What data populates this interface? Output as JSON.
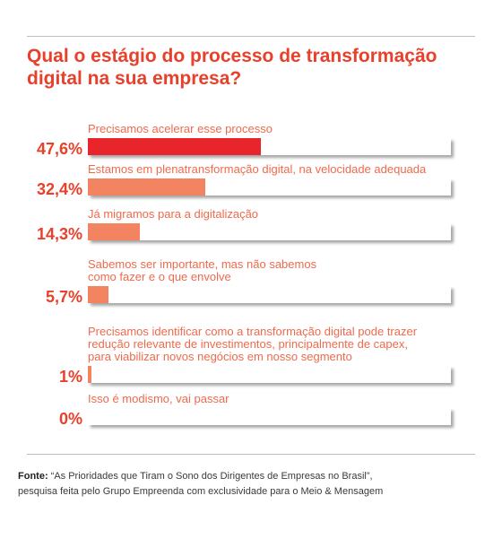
{
  "title": "Qual o estágio do processo de transformação digital na sua empresa?",
  "colors": {
    "highlight": "#e8252b",
    "bar": "#f28462",
    "accent": "#e8402a"
  },
  "chart_data": {
    "type": "bar",
    "orientation": "horizontal",
    "categories": [
      "Precisamos acelerar esse processo",
      "Estamos em plenatransformação digital, na velocidade adequada",
      "Já migramos para a digitalização",
      "Sabemos ser importante, mas não sabemos\ncomo fazer e o que envolve",
      "Precisamos identificar como a transformação digital pode trazer\nredução relevante de investimentos, principalmente de capex,\npara viabilizar novos negócios em nosso segmento",
      "Isso é modismo, vai passar"
    ],
    "values": [
      47.6,
      32.4,
      14.3,
      5.7,
      1,
      0
    ],
    "value_labels": [
      "47,6%",
      "32,4%",
      "14,3%",
      "5,7%",
      "1%",
      "0%"
    ],
    "xlim": [
      0,
      100
    ],
    "unit": "%"
  },
  "source": {
    "label": "Fonte:",
    "text": " “As Prioridades que Tiram o Sono dos Dirigentes de Empresas no Brasil”,",
    "text2": "pesquisa feita pelo Grupo Empreenda com exclusividade para o Meio & Mensagem"
  }
}
